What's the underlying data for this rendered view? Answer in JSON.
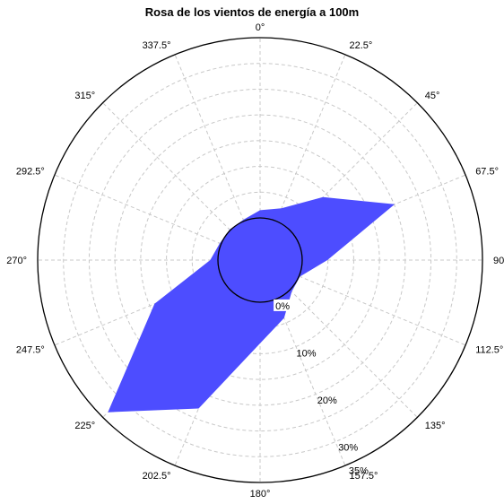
{
  "chart_data": {
    "type": "polar-area",
    "title": "Rosa de los vientos de energía a 100m",
    "directions": [
      "0°",
      "22.5°",
      "45°",
      "67.5°",
      "90°",
      "112.5°",
      "135°",
      "157.5°",
      "180°",
      "202.5°",
      "225°",
      "247.5°",
      "270°",
      "292.5°",
      "315°",
      "337.5°"
    ],
    "radial_range": [
      0,
      35
    ],
    "radial_offset": 0,
    "radial_ticks": [
      {
        "label": "0%",
        "value": 0
      },
      {
        "label": "10%",
        "value": 10
      },
      {
        "label": "20%",
        "value": 20
      },
      {
        "label": "30%",
        "value": 30
      },
      {
        "label": "35%",
        "value": 35
      }
    ],
    "series": [
      {
        "color": "#4d4dff",
        "values": [
          1.5,
          2.7,
          9.1,
          20.1,
          4.9,
          0.2,
          0.5,
          4.0,
          8.0,
          23.0,
          33.6,
          14.0,
          1.5,
          0.3,
          0.2,
          0.3
        ]
      }
    ],
    "grid": true
  }
}
